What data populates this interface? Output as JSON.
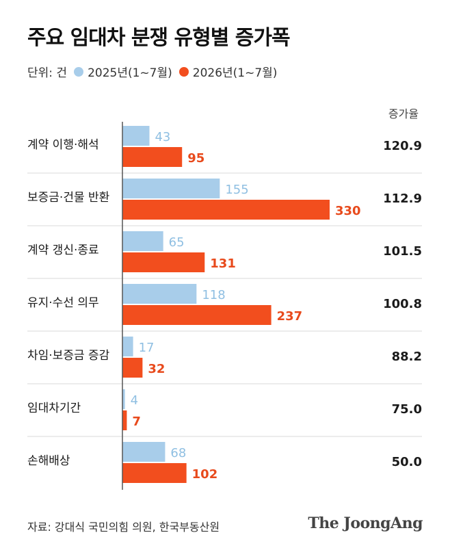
{
  "chart_data": {
    "type": "bar",
    "orientation": "horizontal",
    "title": "주요 임대차 분쟁 유형별 증가폭",
    "unit_label": "단위: 건",
    "rate_header": "증가율",
    "categories": [
      "계약 이행·해석",
      "보증금·건물 반환",
      "계약 갱신·종료",
      "유지·수선 의무",
      "차임·보증금 증감",
      "임대차기간",
      "손해배상"
    ],
    "series": [
      {
        "name": "2025년(1~7월)",
        "color": "#a8cdea",
        "values": [
          43,
          155,
          65,
          118,
          17,
          4,
          68
        ]
      },
      {
        "name": "2026년(1~7월)",
        "color": "#f24e1e",
        "values": [
          95,
          330,
          131,
          237,
          32,
          7,
          102
        ]
      }
    ],
    "growth_rates": [
      "120.9",
      "112.9",
      "101.5",
      "100.8",
      "88.2",
      "75.0",
      "50.0"
    ],
    "xlim": [
      0,
      330
    ],
    "legend_position": "top-left",
    "grid": false
  },
  "footer": {
    "source": "자료: 강대식 국민의힘 의원, 한국부동산원",
    "brand": "The JoongAng"
  }
}
